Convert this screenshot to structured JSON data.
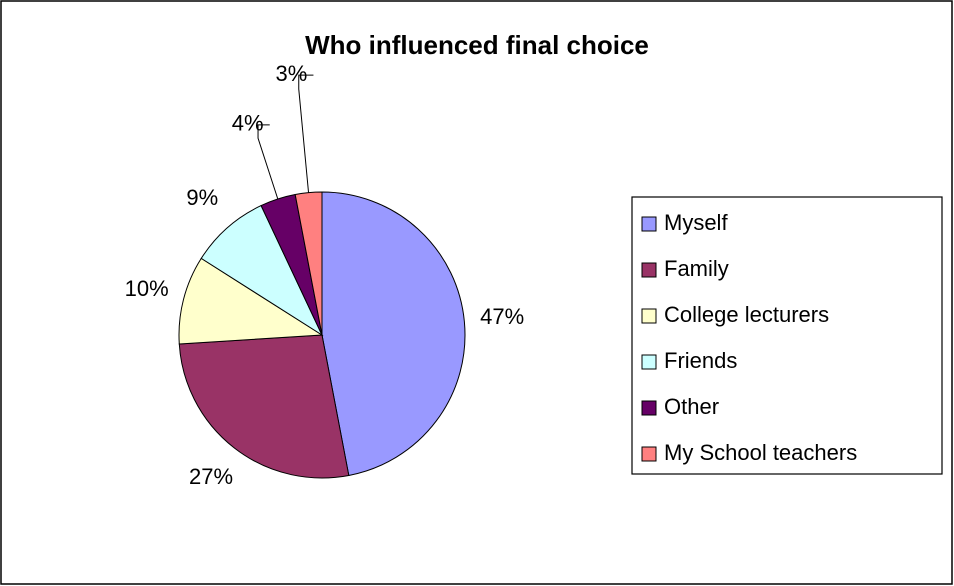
{
  "chart_data": {
    "type": "pie",
    "title": "Who influenced final choice",
    "categories": [
      "Myself",
      "Family",
      "College lecturers",
      "Friends",
      "Other",
      "My School teachers"
    ],
    "values": [
      47,
      27,
      10,
      9,
      4,
      3
    ],
    "value_labels": [
      "47%",
      "27%",
      "10%",
      "9%",
      "4%",
      "3%"
    ],
    "colors": [
      "#9999ff",
      "#993366",
      "#ffffcc",
      "#ccffff",
      "#660066",
      "#ff8080"
    ],
    "legend": "right"
  }
}
